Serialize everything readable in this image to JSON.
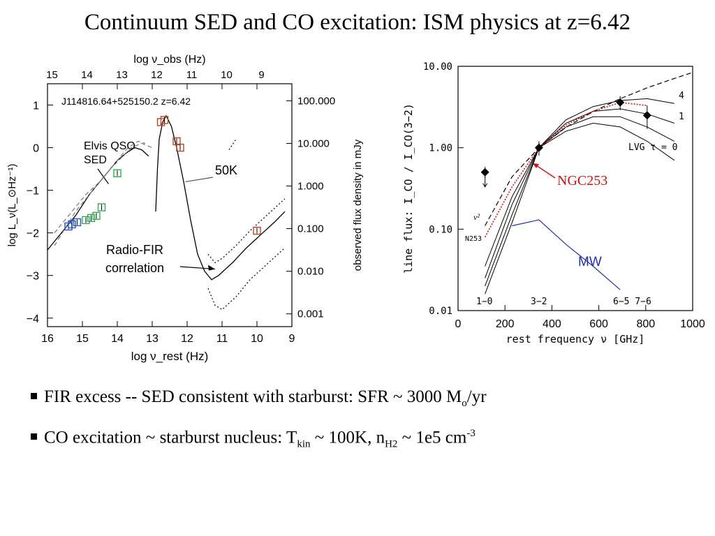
{
  "slide": {
    "title": "Continuum SED and CO excitation: ISM physics at z=6.42"
  },
  "bullets": [
    {
      "text": "FIR excess -- SED consistent with starburst: SFR  ~ 3000 M",
      "sub": "o",
      "tail": "/yr"
    },
    {
      "text": "CO excitation ~ starburst nucleus: T",
      "sub": "kin",
      "mid": " ~ 100K, n",
      "sub2": "H2",
      "mid2": " ~ 1e5 cm",
      "sup": "-3"
    }
  ],
  "chart_data": [
    {
      "type": "line",
      "object_label": "J114816.64+525150.2   z=6.42",
      "xlabel_bottom": "log ν_rest (Hz)",
      "xlabel_top": "log ν_obs (Hz)",
      "ylabel_left": "log L_ν(L_⊙Hz⁻¹)",
      "ylabel_right": "observed flux density in mJy",
      "bottom_ticks": [
        "16",
        "15",
        "14",
        "13",
        "12",
        "11",
        "10",
        "9"
      ],
      "top_ticks": [
        "15",
        "14",
        "13",
        "12",
        "11",
        "10",
        "9"
      ],
      "left_ticks": [
        "1",
        "0",
        "−1",
        "−2",
        "−3",
        "−4"
      ],
      "right_ticks": [
        "100.000",
        "10.000",
        "1.000",
        "0.100",
        "0.010",
        "0.001"
      ],
      "xlim": [
        16,
        9
      ],
      "ylim": [
        -4.2,
        1.5
      ],
      "annotations": {
        "elvis": "Elvis QSO\nSED",
        "temp": "50K",
        "radio": "Radio-FIR\ncorrelation"
      },
      "series": [
        {
          "style": "solid",
          "points": [
            [
              16,
              -2.4
            ],
            [
              15.8,
              -2.2
            ],
            [
              15.6,
              -2.0
            ],
            [
              15.4,
              -1.8
            ],
            [
              15.2,
              -1.6
            ],
            [
              15.0,
              -1.35
            ],
            [
              14.8,
              -1.1
            ],
            [
              14.5,
              -0.8
            ],
            [
              14.2,
              -0.5
            ],
            [
              14.0,
              -0.3
            ],
            [
              13.7,
              -0.1
            ],
            [
              13.5,
              0.0
            ],
            [
              13.3,
              -0.05
            ],
            [
              13.1,
              -0.2
            ]
          ]
        },
        {
          "style": "dash",
          "points": [
            [
              15.8,
              -2.3
            ],
            [
              15.5,
              -1.9
            ],
            [
              15.2,
              -1.5
            ],
            [
              14.9,
              -1.2
            ],
            [
              14.6,
              -0.9
            ],
            [
              14.3,
              -0.6
            ],
            [
              14.0,
              -0.3
            ],
            [
              13.7,
              0.0
            ],
            [
              13.4,
              0.15
            ],
            [
              13.2,
              0.1
            ]
          ]
        },
        {
          "style": "dash",
          "points": [
            [
              15.8,
              -2.0
            ],
            [
              15.5,
              -1.7
            ],
            [
              15.2,
              -1.4
            ],
            [
              14.9,
              -1.1
            ],
            [
              14.5,
              -0.8
            ],
            [
              14.2,
              -0.5
            ],
            [
              13.9,
              -0.25
            ],
            [
              13.6,
              0.0
            ],
            [
              13.3,
              0.1
            ],
            [
              13.0,
              0.0
            ]
          ]
        },
        {
          "style": "solid",
          "points": [
            [
              12.9,
              -1.5
            ],
            [
              12.85,
              -0.5
            ],
            [
              12.8,
              0.2
            ],
            [
              12.7,
              0.6
            ],
            [
              12.6,
              0.75
            ],
            [
              12.45,
              0.5
            ],
            [
              12.3,
              0.0
            ],
            [
              12.1,
              -0.8
            ],
            [
              11.9,
              -1.7
            ],
            [
              11.7,
              -2.5
            ],
            [
              11.5,
              -2.9
            ],
            [
              11.3,
              -3.1
            ],
            [
              11.1,
              -3.0
            ],
            [
              10.7,
              -2.7
            ],
            [
              10.3,
              -2.35
            ],
            [
              9.9,
              -2.05
            ],
            [
              9.5,
              -1.75
            ],
            [
              9.2,
              -1.5
            ]
          ]
        },
        {
          "style": "dot",
          "points": [
            [
              11.4,
              -3.3
            ],
            [
              11.2,
              -3.7
            ],
            [
              11.0,
              -3.8
            ],
            [
              10.6,
              -3.5
            ],
            [
              10.2,
              -3.1
            ],
            [
              9.8,
              -2.8
            ],
            [
              9.4,
              -2.5
            ],
            [
              9.2,
              -2.35
            ]
          ]
        },
        {
          "style": "dot",
          "points": [
            [
              11.4,
              -2.5
            ],
            [
              11.2,
              -2.7
            ],
            [
              11.0,
              -2.6
            ],
            [
              10.6,
              -2.3
            ],
            [
              10.2,
              -1.95
            ],
            [
              9.8,
              -1.65
            ],
            [
              9.4,
              -1.35
            ],
            [
              9.2,
              -1.2
            ]
          ]
        },
        {
          "style": "dot",
          "points": [
            [
              10.8,
              -0.05
            ],
            [
              10.6,
              0.2
            ]
          ]
        }
      ],
      "data_points": [
        {
          "x": 15.4,
          "y": -1.85,
          "color": "#2255cc"
        },
        {
          "x": 15.3,
          "y": -1.8,
          "color": "#2255cc"
        },
        {
          "x": 15.15,
          "y": -1.75,
          "color": "#2255cc"
        },
        {
          "x": 14.9,
          "y": -1.7,
          "color": "#33aa55"
        },
        {
          "x": 14.75,
          "y": -1.65,
          "color": "#33aa55"
        },
        {
          "x": 14.6,
          "y": -1.6,
          "color": "#33aa55"
        },
        {
          "x": 14.45,
          "y": -1.4,
          "color": "#33aa55"
        },
        {
          "x": 14.0,
          "y": -0.6,
          "color": "#33aa55"
        },
        {
          "x": 12.75,
          "y": 0.6,
          "color": "#bb4422"
        },
        {
          "x": 12.65,
          "y": 0.65,
          "color": "#bb4422"
        },
        {
          "x": 12.3,
          "y": 0.15,
          "color": "#bb4422"
        },
        {
          "x": 12.2,
          "y": 0.0,
          "color": "#bb4422"
        },
        {
          "x": 10.0,
          "y": -1.95,
          "color": "#bb4422"
        }
      ]
    },
    {
      "type": "line",
      "xlabel": "rest frequency ν [GHz]",
      "ylabel": "line flux:  I_CO / I_CO(3−2)",
      "x_ticks": [
        "0",
        "200",
        "400",
        "600",
        "800",
        "1000"
      ],
      "y_ticks": [
        "10.00",
        "1.00",
        "0.10",
        "0.01"
      ],
      "xlim": [
        0,
        1000
      ],
      "ylim": [
        0.01,
        10
      ],
      "yscale": "log",
      "labels": {
        "lvg": "LVG  τ = 0",
        "four": "4",
        "one": "1",
        "nu2": "ν²",
        "n253": "N253",
        "ngc": "NGC253",
        "mw": "MW",
        "t10": "1−0",
        "t32": "3−2",
        "t65": "6−5 7−6"
      },
      "models": [
        [
          [
            115,
            0.016
          ],
          [
            230,
            0.12
          ],
          [
            345,
            1.0
          ],
          [
            460,
            2.2
          ],
          [
            576,
            3.2
          ],
          [
            691,
            3.8
          ],
          [
            806,
            4.0
          ],
          [
            922,
            3.5
          ]
        ],
        [
          [
            115,
            0.02
          ],
          [
            230,
            0.15
          ],
          [
            345,
            1.0
          ],
          [
            460,
            2.0
          ],
          [
            576,
            2.8
          ],
          [
            691,
            3.0
          ],
          [
            806,
            2.6
          ],
          [
            922,
            2.0
          ]
        ],
        [
          [
            115,
            0.025
          ],
          [
            230,
            0.2
          ],
          [
            345,
            1.0
          ],
          [
            460,
            1.8
          ],
          [
            576,
            2.4
          ],
          [
            691,
            2.4
          ],
          [
            806,
            1.8
          ],
          [
            922,
            1.2
          ]
        ],
        [
          [
            115,
            0.035
          ],
          [
            230,
            0.25
          ],
          [
            345,
            1.0
          ],
          [
            460,
            1.6
          ],
          [
            576,
            2.0
          ],
          [
            691,
            1.8
          ],
          [
            806,
            1.2
          ],
          [
            922,
            0.7
          ]
        ]
      ],
      "nu2": [
        [
          115,
          0.11
        ],
        [
          230,
          0.44
        ],
        [
          345,
          1.0
        ],
        [
          460,
          1.78
        ],
        [
          576,
          2.78
        ],
        [
          691,
          4.0
        ],
        [
          806,
          5.45
        ],
        [
          922,
          7.1
        ],
        [
          1000,
          8.4
        ]
      ],
      "ngc253": [
        [
          115,
          0.08
        ],
        [
          230,
          0.33
        ],
        [
          345,
          1.0
        ],
        [
          460,
          1.9
        ],
        [
          576,
          2.8
        ],
        [
          691,
          3.6
        ],
        [
          806,
          3.3
        ]
      ],
      "mw": [
        [
          230,
          0.11
        ],
        [
          345,
          0.13
        ],
        [
          460,
          0.065
        ],
        [
          576,
          0.035
        ],
        [
          691,
          0.018
        ]
      ],
      "observations": [
        {
          "x": 115,
          "y": 0.5,
          "err": 0.08,
          "upper_limit": true
        },
        {
          "x": 345,
          "y": 1.0,
          "err": 0.2
        },
        {
          "x": 691,
          "y": 3.6,
          "err": 0.7
        },
        {
          "x": 806,
          "y": 2.5,
          "err": 0.8
        }
      ]
    }
  ]
}
